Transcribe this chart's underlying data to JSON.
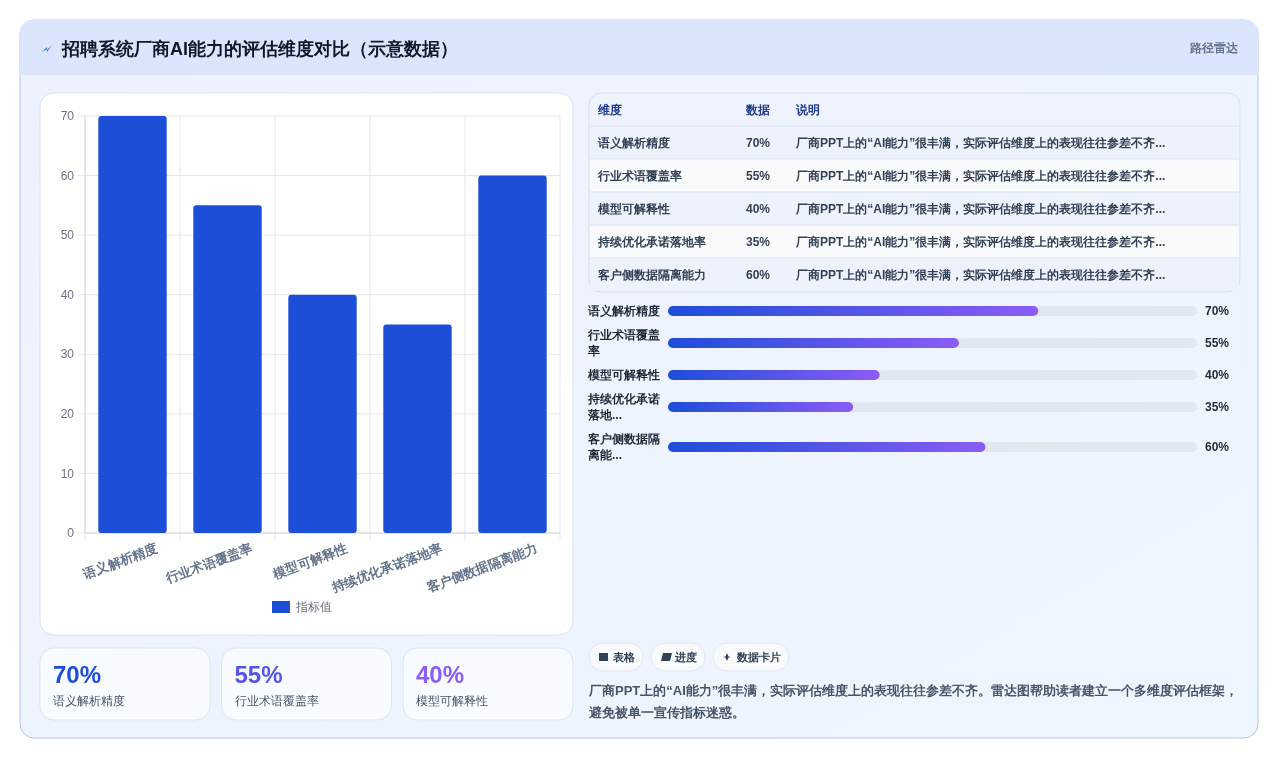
{
  "chart_data": [
    {
      "type": "bar",
      "title": "招聘系统厂商AI能力的评估维度对比（示意数据）",
      "categories": [
        "语义解析精度",
        "行业术语覆盖率",
        "模型可解释性",
        "持续优化承诺落地率",
        "客户侧数据隔离能力"
      ],
      "series": [
        {
          "name": "指标值",
          "color": "#1d4ed8",
          "values": [
            70,
            55,
            40,
            35,
            60
          ]
        }
      ],
      "ylim": [
        0,
        70
      ],
      "yticks": [
        0,
        10,
        20,
        30,
        40,
        50,
        60,
        70
      ],
      "grid": true,
      "legend": "bottom"
    },
    {
      "type": "other",
      "subtitle": "路径雷达",
      "categories": [
        "语义解析精度",
        "行业术语覆盖率",
        "模型可解释性",
        "持续优化承诺落地率",
        "客户侧数据隔离能力"
      ],
      "value_labels": [
        "70%",
        "55%",
        "40%",
        "35%",
        "60%"
      ],
      "annotations": [
        "维度",
        "数据",
        "说明",
        "厂商PPT上的“AI能力”很丰满，实际评估维度上的表现往往参差不齐...",
        "厂商PPT上的“AI能力”很丰满，实际评估维度上的表现往往参差不齐...",
        "厂商PPT上的“AI能力”很丰满，实际评估维度上的表现往往参差不齐...",
        "厂商PPT上的“AI能力”很丰满，实际评估维度上的表现往往参差不齐...",
        "厂商PPT上的“AI能力”很丰满，实际评估维度上的表现往往参差不齐..."
      ]
    },
    {
      "type": "bar",
      "orientation": "horizontal",
      "categories": [
        "语义解析精度",
        "行业术语覆盖率",
        "模型可解释性",
        "持续优化承诺落地...",
        "客户侧数据隔离能..."
      ],
      "values": [
        70,
        55,
        40,
        35,
        60
      ],
      "value_labels": [
        "70%",
        "55%",
        "40%",
        "35%",
        "60%"
      ],
      "color": "#1d4ed8"
    },
    {
      "type": "other",
      "categories": [
        "语义解析精度",
        "行业术语覆盖率",
        "模型可解释性"
      ],
      "value_labels": [
        "70%",
        "55%",
        "40%"
      ]
    },
    {
      "type": "other",
      "annotations": [
        "表格",
        "进度",
        "数据卡片",
        "厂商PPT上的“AI能力”很丰满，实际评估维度上的表现往往参差不齐。雷达图帮助读者建立一个多维度评估框架，避免被单一宣传指标迷惑。"
      ]
    }
  ]
}
